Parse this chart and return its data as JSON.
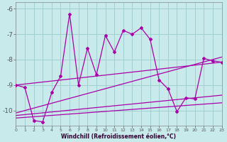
{
  "xlabel": "Windchill (Refroidissement éolien,°C)",
  "xlim": [
    0,
    23
  ],
  "ylim": [
    -10.6,
    -5.75
  ],
  "yticks": [
    -10,
    -9,
    -8,
    -7,
    -6
  ],
  "xticks": [
    0,
    1,
    2,
    3,
    4,
    5,
    6,
    7,
    8,
    9,
    10,
    11,
    12,
    13,
    14,
    15,
    16,
    17,
    18,
    19,
    20,
    21,
    22,
    23
  ],
  "background_color": "#c8eaeb",
  "grid_color": "#a0cfd2",
  "line_color": "#aa00aa",
  "line1_x": [
    0,
    23
  ],
  "line1_y": [
    -9.0,
    -8.1
  ],
  "line2_x": [
    0,
    23
  ],
  "line2_y": [
    -10.1,
    -7.9
  ],
  "line3_x": [
    0,
    23
  ],
  "line3_y": [
    -10.2,
    -9.4
  ],
  "line4_x": [
    0,
    23
  ],
  "line4_y": [
    -10.3,
    -9.7
  ],
  "curve_x": [
    0,
    1,
    2,
    3,
    4,
    5,
    6,
    7,
    8,
    9,
    10,
    11,
    12,
    13,
    14,
    15,
    16,
    17,
    18,
    19,
    20,
    21,
    22,
    23
  ],
  "curve_y": [
    -9.0,
    -9.1,
    -10.4,
    -10.45,
    -9.3,
    -8.65,
    -6.2,
    -9.0,
    -7.55,
    -8.6,
    -7.05,
    -7.7,
    -6.85,
    -7.0,
    -6.75,
    -7.2,
    -8.8,
    -9.15,
    -10.05,
    -9.5,
    -9.55,
    -7.95,
    -8.05,
    -8.1
  ]
}
